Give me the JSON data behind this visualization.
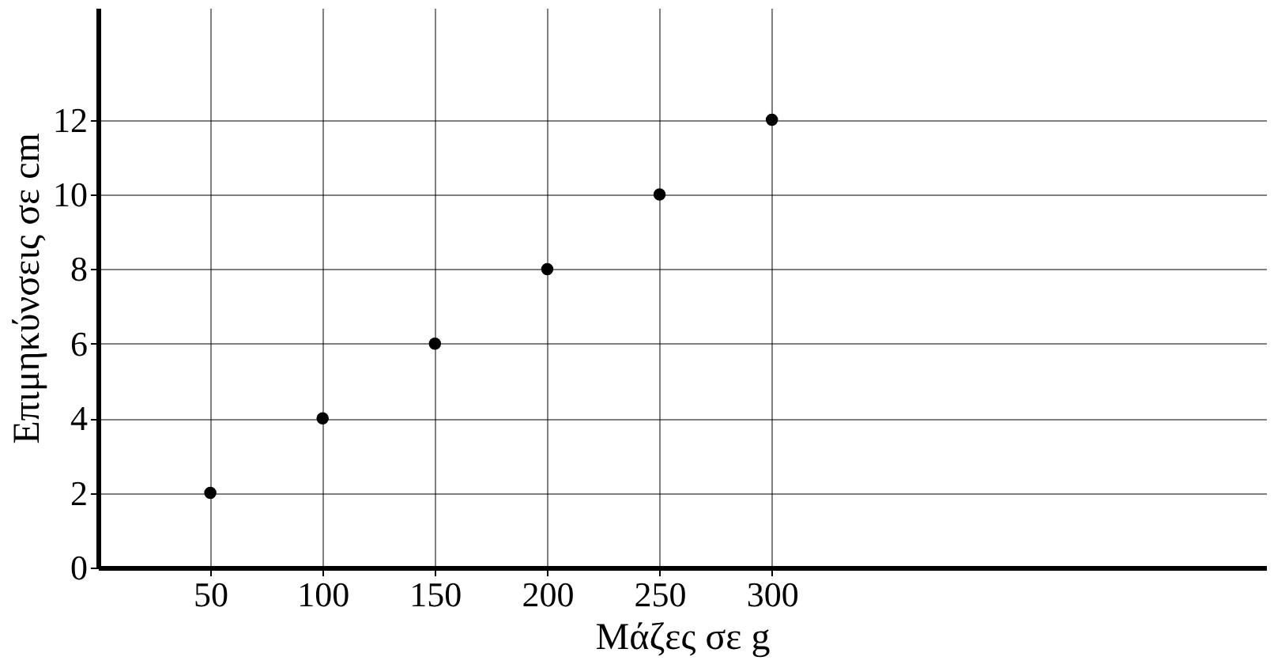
{
  "chart_data": {
    "type": "scatter",
    "xlabel": "Μάζες σε g",
    "ylabel": "Επιμηκύνσεις σε cm",
    "x": [
      50,
      100,
      150,
      200,
      250,
      300
    ],
    "series": [
      {
        "color": "#000000",
        "values": [
          2,
          4,
          6,
          8,
          10,
          12
        ]
      }
    ],
    "xlim": [
      0,
      520
    ],
    "ylim": [
      0,
      15
    ],
    "xticks": [
      50,
      100,
      150,
      200,
      250,
      300
    ],
    "yticks": [
      0,
      2,
      4,
      6,
      8,
      10,
      12
    ],
    "grid": true,
    "marker": "circle"
  }
}
